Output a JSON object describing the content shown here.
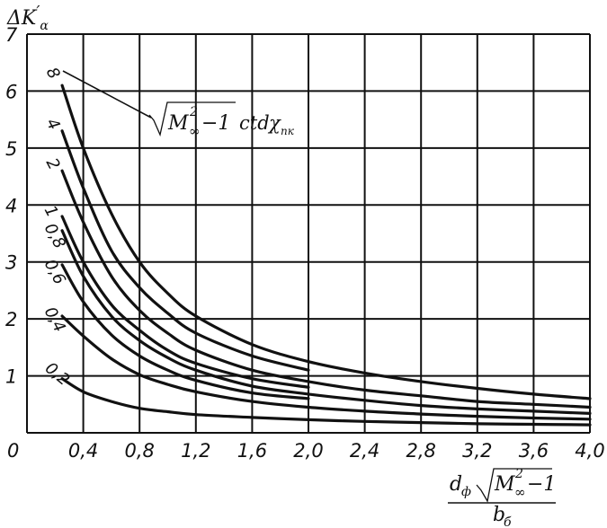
{
  "chart_data": {
    "type": "line",
    "title": "",
    "ylabel": "ΔK′α",
    "xlabel": "d_ф √(M∞² −1) / b_б",
    "xlim": [
      0,
      4.0
    ],
    "ylim": [
      0,
      7
    ],
    "grid": true,
    "x_ticks": [
      "0",
      "0,4",
      "0,8",
      "1,2",
      "1,6",
      "2,0",
      "2,4",
      "2,8",
      "3,2",
      "3,6",
      "4,0"
    ],
    "y_ticks": [
      "1",
      "2",
      "3",
      "4",
      "5",
      "6",
      "7"
    ],
    "parameter_label": "√(M∞² −1) ctdχпк",
    "series": [
      {
        "name": "8",
        "x": [
          0.25,
          0.4,
          0.6,
          0.8,
          1.0,
          1.2,
          1.6,
          2.0,
          2.4,
          2.8,
          3.2,
          3.6,
          4.0
        ],
        "y": [
          6.1,
          5.0,
          3.85,
          3.0,
          2.45,
          2.05,
          1.55,
          1.25,
          1.05,
          0.9,
          0.78,
          0.68,
          0.6
        ]
      },
      {
        "name": "4",
        "x": [
          0.25,
          0.4,
          0.6,
          0.8,
          1.0,
          1.2,
          1.6,
          2.0
        ],
        "y": [
          5.3,
          4.3,
          3.2,
          2.55,
          2.1,
          1.75,
          1.35,
          1.1
        ]
      },
      {
        "name": "2",
        "x": [
          0.25,
          0.4,
          0.6,
          0.8,
          1.0,
          1.2,
          1.6,
          2.0,
          2.4,
          2.8,
          3.2,
          3.6,
          4.0
        ],
        "y": [
          4.6,
          3.7,
          2.75,
          2.15,
          1.75,
          1.45,
          1.1,
          0.9,
          0.75,
          0.65,
          0.55,
          0.5,
          0.45
        ]
      },
      {
        "name": "1",
        "x": [
          0.25,
          0.4,
          0.6,
          0.8,
          1.0,
          1.2,
          1.6,
          2.0
        ],
        "y": [
          3.8,
          3.0,
          2.25,
          1.8,
          1.45,
          1.22,
          0.95,
          0.8
        ]
      },
      {
        "name": "0,8",
        "x": [
          0.25,
          0.4,
          0.6,
          0.8,
          1.0,
          1.2,
          1.6,
          2.0,
          2.4,
          2.8,
          3.2,
          3.6,
          4.0
        ],
        "y": [
          3.55,
          2.75,
          2.05,
          1.62,
          1.32,
          1.1,
          0.82,
          0.68,
          0.57,
          0.48,
          0.42,
          0.38,
          0.34
        ]
      },
      {
        "name": "0,6",
        "x": [
          0.25,
          0.4,
          0.6,
          0.8,
          1.0,
          1.2,
          1.6,
          2.0
        ],
        "y": [
          2.95,
          2.3,
          1.72,
          1.35,
          1.1,
          0.92,
          0.7,
          0.6
        ]
      },
      {
        "name": "0,4",
        "x": [
          0.25,
          0.4,
          0.6,
          0.8,
          1.0,
          1.2,
          1.6,
          2.0,
          2.4,
          2.8,
          3.2,
          3.6,
          4.0
        ],
        "y": [
          2.05,
          1.7,
          1.3,
          1.02,
          0.85,
          0.72,
          0.55,
          0.45,
          0.38,
          0.33,
          0.29,
          0.26,
          0.24
        ]
      },
      {
        "name": "0,2",
        "x": [
          0.25,
          0.4,
          0.6,
          0.8,
          1.0,
          1.2,
          1.6,
          2.0,
          2.4,
          2.8,
          3.2,
          3.6,
          4.0
        ],
        "y": [
          0.95,
          0.72,
          0.55,
          0.43,
          0.37,
          0.32,
          0.27,
          0.23,
          0.2,
          0.18,
          0.16,
          0.15,
          0.14
        ]
      }
    ]
  }
}
